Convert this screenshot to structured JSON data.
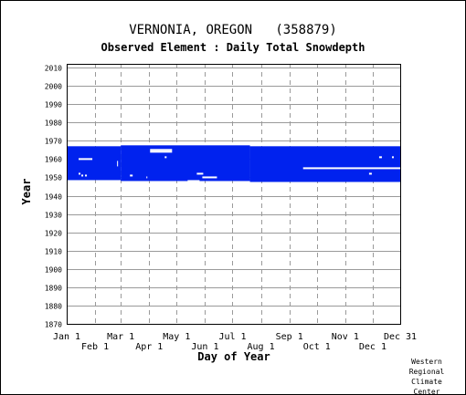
{
  "chart_data": {
    "type": "timeline",
    "title": "VERNONIA, OREGON   (358879)",
    "subtitle": "Observed Element : Daily Total Snowdepth",
    "xlabel": "Day of Year",
    "ylabel": "Year",
    "xlim": [
      1,
      365
    ],
    "ylim": [
      1870,
      2012
    ],
    "x_ticks_top": [
      {
        "label": "Jan 1",
        "day": 1
      },
      {
        "label": "Mar 1",
        "day": 60
      },
      {
        "label": "May 1",
        "day": 121
      },
      {
        "label": "Jul 1",
        "day": 182
      },
      {
        "label": "Sep 1",
        "day": 244
      },
      {
        "label": "Nov 1",
        "day": 305
      },
      {
        "label": "Dec 31",
        "day": 365
      }
    ],
    "x_ticks_bottom": [
      {
        "label": "Feb 1",
        "day": 32
      },
      {
        "label": "Apr 1",
        "day": 91
      },
      {
        "label": "Jun 1",
        "day": 152
      },
      {
        "label": "Aug 1",
        "day": 213
      },
      {
        "label": "Oct 1",
        "day": 274
      },
      {
        "label": "Dec 1",
        "day": 335
      }
    ],
    "y_ticks": [
      "1870",
      "1880",
      "1890",
      "1900",
      "1910",
      "1920",
      "1930",
      "1940",
      "1950",
      "1960",
      "1970",
      "1980",
      "1990",
      "2000",
      "2010"
    ],
    "grid": true,
    "series_color": "#0022ee",
    "coverage": [
      {
        "day_start": 1,
        "day_end": 60,
        "year_start": 1948.5,
        "year_end": 1967
      },
      {
        "day_start": 60,
        "day_end": 201,
        "year_start": 1948,
        "year_end": 1967.5
      },
      {
        "day_start": 201,
        "day_end": 365,
        "year_start": 1947.5,
        "year_end": 1967
      }
    ],
    "gaps": [
      {
        "day_start": 14,
        "day_end": 29,
        "year": 1960
      },
      {
        "day_start": 14,
        "day_end": 16,
        "year": 1952
      },
      {
        "day_start": 17,
        "day_end": 19,
        "year": 1951
      },
      {
        "day_start": 21,
        "day_end": 23,
        "year": 1951
      },
      {
        "day_start": 56,
        "day_end": 57,
        "year_start": 1956,
        "year_end": 1959
      },
      {
        "day_start": 70,
        "day_end": 73,
        "year": 1951
      },
      {
        "day_start": 88,
        "day_end": 89,
        "year": 1950
      },
      {
        "day_start": 92,
        "day_end": 116,
        "year": 1965
      },
      {
        "day_start": 92,
        "day_end": 116,
        "year": 1964
      },
      {
        "day_start": 108,
        "day_end": 110,
        "year": 1961
      },
      {
        "day_start": 143,
        "day_end": 150,
        "year": 1952
      },
      {
        "day_start": 149,
        "day_end": 165,
        "year": 1950
      },
      {
        "day_start": 133,
        "day_end": 146,
        "year": 1948
      },
      {
        "day_start": 259,
        "day_end": 365,
        "year": 1955
      },
      {
        "day_start": 331,
        "day_end": 334,
        "year": 1952
      },
      {
        "day_start": 342,
        "day_end": 345,
        "year": 1961
      },
      {
        "day_start": 356,
        "day_end": 358,
        "year": 1961
      }
    ]
  },
  "credit": [
    "Western",
    "Regional",
    "Climate",
    "Center"
  ]
}
